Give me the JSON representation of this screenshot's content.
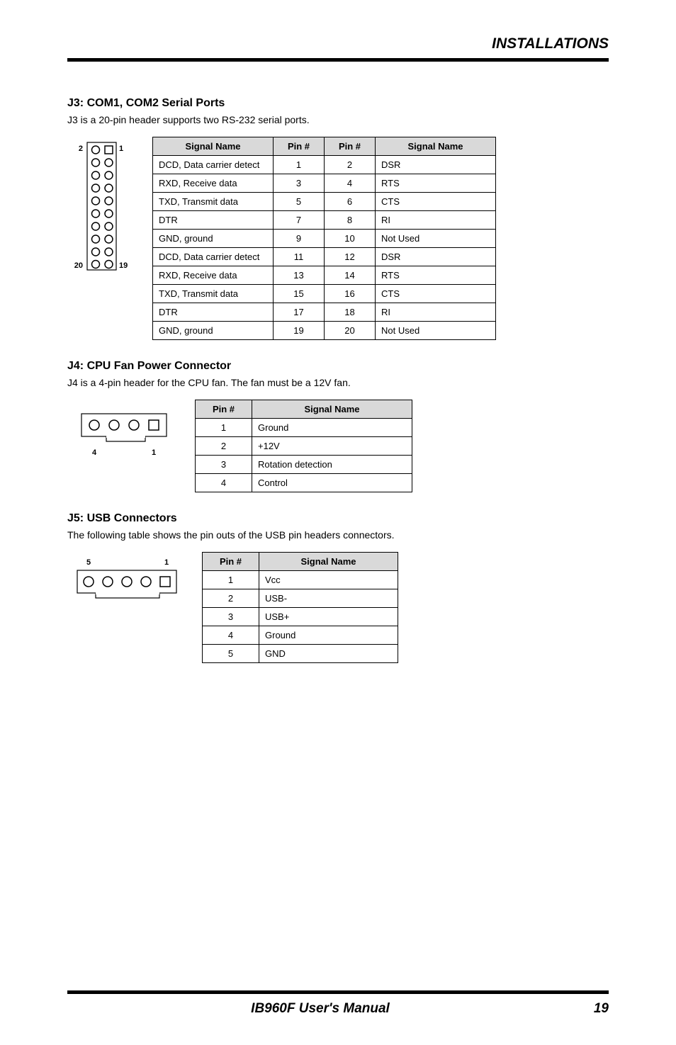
{
  "header": {
    "title": "INSTALLATIONS"
  },
  "sections": {
    "j3": {
      "heading": "J3: COM1, COM2 Serial Ports",
      "desc": "J3 is a 20-pin header supports two RS-232 serial ports.",
      "diagram": {
        "top_left_label": "2",
        "top_right_label": "1",
        "bot_left_label": "20",
        "bot_right_label": "19",
        "rows": 10,
        "outline_color": "#000000"
      },
      "table": {
        "headers": [
          "Signal Name",
          "Pin #",
          "Pin #",
          "Signal Name"
        ],
        "rows": [
          [
            "DCD, Data carrier detect",
            "1",
            "2",
            "DSR"
          ],
          [
            "RXD, Receive data",
            "3",
            "4",
            "RTS"
          ],
          [
            "TXD, Transmit data",
            "5",
            "6",
            "CTS"
          ],
          [
            "DTR",
            "7",
            "8",
            "RI"
          ],
          [
            "GND, ground",
            "9",
            "10",
            "Not Used"
          ],
          [
            "DCD, Data carrier detect",
            "11",
            "12",
            "DSR"
          ],
          [
            "RXD, Receive data",
            "13",
            "14",
            "RTS"
          ],
          [
            "TXD, Transmit data",
            "15",
            "16",
            "CTS"
          ],
          [
            "DTR",
            "17",
            "18",
            "RI"
          ],
          [
            "GND, ground",
            "19",
            "20",
            "Not Used"
          ]
        ]
      }
    },
    "j4": {
      "heading": "J4: CPU Fan Power Connector",
      "desc": "J4 is a 4-pin header for the CPU fan. The fan must be a 12V fan.",
      "diagram": {
        "left_label": "4",
        "right_label": "1",
        "pins": 4
      },
      "table": {
        "headers": [
          "Pin #",
          "Signal Name"
        ],
        "rows": [
          [
            "1",
            "Ground"
          ],
          [
            "2",
            "+12V"
          ],
          [
            "3",
            "Rotation detection"
          ],
          [
            "4",
            "Control"
          ]
        ]
      }
    },
    "j5": {
      "heading": "J5: USB Connectors",
      "desc": "The following table shows the pin outs of the USB pin headers connectors.",
      "diagram": {
        "left_label": "5",
        "right_label": "1",
        "pins": 5
      },
      "table": {
        "headers": [
          "Pin #",
          "Signal Name"
        ],
        "rows": [
          [
            "1",
            "Vcc"
          ],
          [
            "2",
            "USB-"
          ],
          [
            "3",
            "USB+"
          ],
          [
            "4",
            "Ground"
          ],
          [
            "5",
            "GND"
          ]
        ]
      }
    }
  },
  "footer": {
    "center": "IB960F User's Manual",
    "page": "19"
  },
  "colors": {
    "rule": "#000000",
    "th_bg": "#d9d9d9",
    "text": "#000000"
  }
}
